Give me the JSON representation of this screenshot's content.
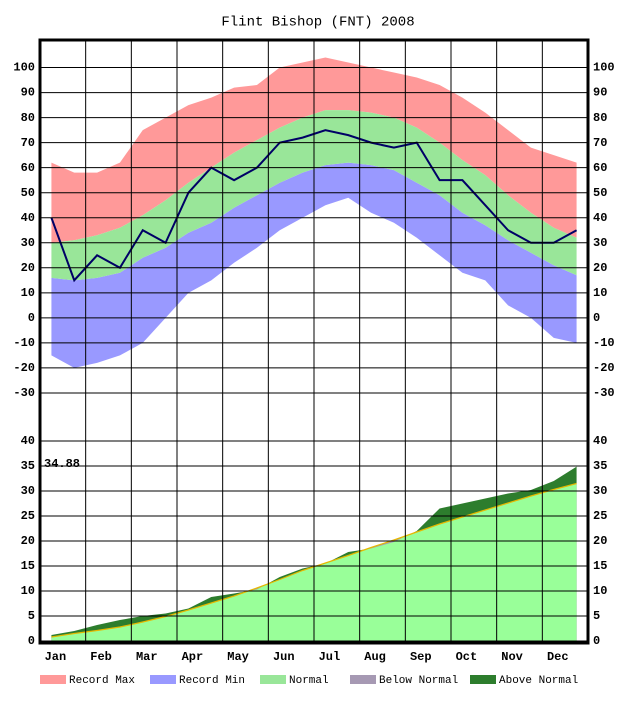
{
  "chart_data": [
    {
      "type": "climate-band",
      "title": "Flint Bishop (FNT) 2008",
      "categories": [
        "Jan",
        null,
        "Feb",
        null,
        "Mar",
        null,
        "Apr",
        null,
        "May",
        null,
        "Jun",
        null,
        "Jul",
        null,
        "Aug",
        null,
        "Sep",
        null,
        "Oct",
        null,
        "Nov",
        null,
        "Dec",
        null
      ],
      "series": [
        {
          "name": "Record Max",
          "color": "#ff9999",
          "values": [
            62,
            58,
            58,
            62,
            75,
            80,
            85,
            88,
            92,
            93,
            100,
            102,
            104,
            102,
            100,
            98,
            96,
            93,
            88,
            82,
            75,
            68,
            65,
            62
          ]
        },
        {
          "name": "Record Min",
          "color": "#9999ff",
          "values": [
            -15,
            -20,
            -18,
            -15,
            -10,
            0,
            10,
            15,
            22,
            28,
            35,
            40,
            45,
            48,
            42,
            38,
            32,
            25,
            18,
            15,
            5,
            0,
            -8,
            -10
          ]
        },
        {
          "name": "Normal",
          "color": "#99e699",
          "high": [
            30,
            31,
            33,
            36,
            41,
            47,
            54,
            60,
            66,
            71,
            76,
            80,
            83,
            83,
            82,
            80,
            76,
            70,
            63,
            57,
            49,
            42,
            36,
            32
          ],
          "low": [
            16,
            15,
            16,
            18,
            24,
            28,
            34,
            38,
            44,
            49,
            54,
            58,
            61,
            62,
            61,
            59,
            54,
            49,
            42,
            37,
            31,
            26,
            21,
            17
          ]
        }
      ],
      "observed": {
        "color": "#000066",
        "values": [
          40,
          15,
          25,
          20,
          35,
          30,
          50,
          60,
          55,
          60,
          70,
          72,
          75,
          73,
          70,
          68,
          70,
          55,
          55,
          45,
          35,
          30,
          30,
          35
        ]
      },
      "ylim": [
        -40,
        111
      ],
      "yticks": [
        -30,
        -20,
        -10,
        0,
        10,
        20,
        30,
        40,
        50,
        60,
        70,
        80,
        90,
        100
      ],
      "grid": true
    },
    {
      "type": "cumulative-precip",
      "normal": [
        0.8,
        1.5,
        2.1,
        2.8,
        3.8,
        4.9,
        6.2,
        7.6,
        9.0,
        10.6,
        12.3,
        14.1,
        15.6,
        17.1,
        18.7,
        20.2,
        21.8,
        23.4,
        24.8,
        26.2,
        27.6,
        29.0,
        30.3,
        31.5
      ],
      "actual": [
        1.2,
        2.0,
        3.2,
        4.2,
        5.0,
        5.5,
        6.5,
        8.8,
        9.5,
        10.3,
        12.8,
        14.5,
        15.5,
        17.8,
        18.5,
        19.8,
        22.0,
        26.5,
        27.5,
        28.5,
        29.5,
        30.2,
        32.0,
        34.88
      ],
      "normal_color": "#99ff99",
      "below_color": "#a699b3",
      "above_color": "#2d7d2d",
      "normal_line_color": "#e6b800",
      "ylim": [
        0,
        40
      ],
      "yticks": [
        0,
        5,
        10,
        15,
        20,
        25,
        30,
        35,
        40
      ],
      "grid": true
    }
  ],
  "legend": [
    {
      "name": "Record Max",
      "color": "#ff9999"
    },
    {
      "name": "Record Min",
      "color": "#9999ff"
    },
    {
      "name": "Normal",
      "color": "#99e699"
    },
    {
      "name": "Below Normal",
      "color": "#a699b3"
    },
    {
      "name": "Above Normal",
      "color": "#2d7d2d"
    }
  ]
}
